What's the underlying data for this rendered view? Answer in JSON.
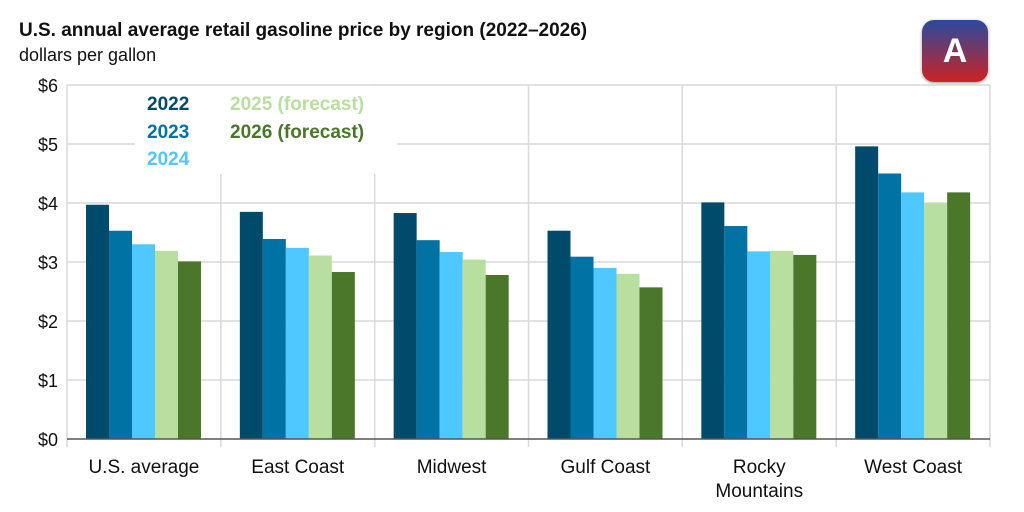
{
  "chart_data": {
    "type": "bar",
    "title": "U.S. annual average retail gasoline price by region (2022–2026)",
    "subtitle": "dollars per gallon",
    "categories": [
      "U.S. average",
      "East Coast",
      "Midwest",
      "Gulf Coast",
      "Rocky Mountains",
      "West Coast"
    ],
    "series": [
      {
        "name": "2022",
        "color": "#004b6b",
        "values": [
          3.97,
          3.85,
          3.83,
          3.53,
          4.01,
          4.96
        ]
      },
      {
        "name": "2023",
        "color": "#0072a3",
        "values": [
          3.53,
          3.39,
          3.37,
          3.09,
          3.61,
          4.5
        ]
      },
      {
        "name": "2024",
        "color": "#4fc7ff",
        "values": [
          3.3,
          3.24,
          3.17,
          2.9,
          3.18,
          4.18
        ]
      },
      {
        "name": "2025 (forecast)",
        "color": "#b9dfa0",
        "values": [
          3.19,
          3.11,
          3.04,
          2.8,
          3.19,
          4.0
        ]
      },
      {
        "name": "2026 (forecast)",
        "color": "#4a7729",
        "values": [
          3.01,
          2.83,
          2.78,
          2.57,
          3.12,
          4.18
        ]
      }
    ],
    "ylim": [
      0,
      6
    ],
    "yticks": [
      "$0",
      "$1",
      "$2",
      "$3",
      "$4",
      "$5",
      "$6"
    ],
    "grid": true,
    "legend": "top-left"
  },
  "logo": {
    "text": "A"
  }
}
